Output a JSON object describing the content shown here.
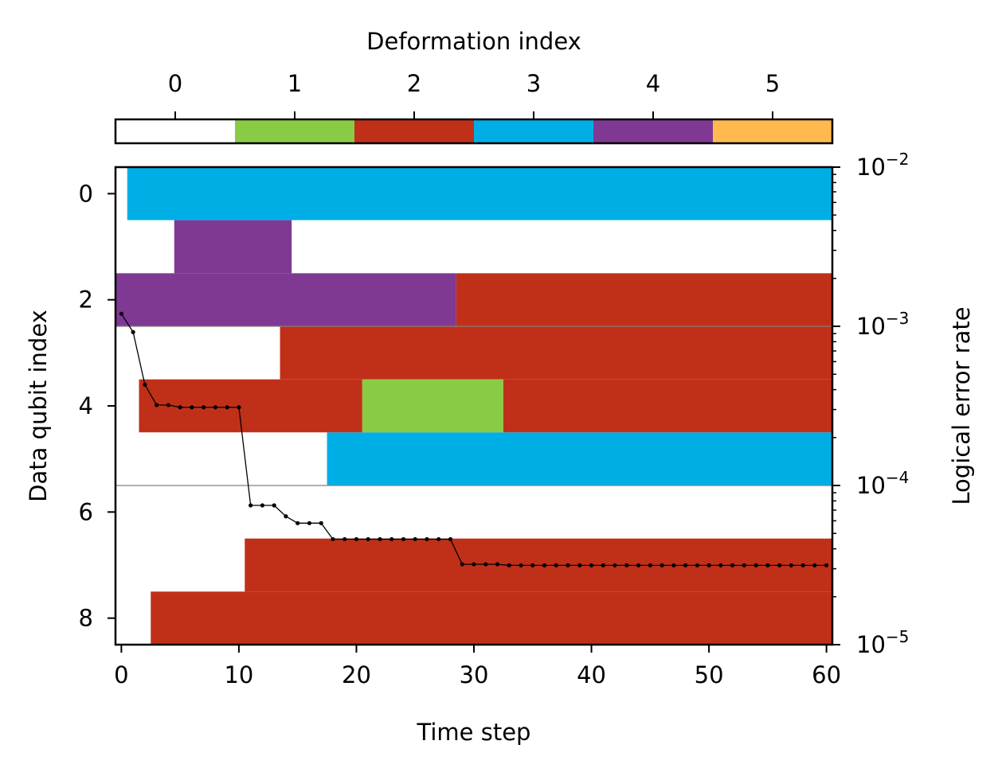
{
  "chart_data": {
    "type": "heatmap",
    "title": "",
    "xlabel": "Time step",
    "ylabel": "Data qubit index",
    "y2label": "Logical error rate",
    "colorbar_label": "Deformation index",
    "colorbar_ticks": [
      "0",
      "1",
      "2",
      "3",
      "4",
      "5"
    ],
    "colorbar_colors": [
      "#ffffff",
      "#8acb46",
      "#c03018",
      "#00aee6",
      "#7f3993",
      "#ffb94f"
    ],
    "x_ticks": [
      "0",
      "10",
      "20",
      "30",
      "40",
      "50",
      "60"
    ],
    "xlim": [
      -0.5,
      60.5
    ],
    "y_ticks": [
      "0",
      "2",
      "4",
      "6",
      "8"
    ],
    "ylim": [
      8.5,
      -0.5
    ],
    "y2_ticks": [
      {
        "base": "10",
        "exp": "−2",
        "value": -2
      },
      {
        "base": "10",
        "exp": "−3",
        "value": -3
      },
      {
        "base": "10",
        "exp": "−4",
        "value": -4
      },
      {
        "base": "10",
        "exp": "−5",
        "value": -5
      }
    ],
    "y2lim": [
      1e-05,
      0.01
    ],
    "y2scale": "log",
    "group_separators": [
      2.5,
      5.5
    ],
    "rows": [
      {
        "qubit": 0,
        "segments": [
          {
            "start": 0,
            "end": 0,
            "deformation": 0
          },
          {
            "start": 1,
            "end": 60,
            "deformation": 3
          }
        ]
      },
      {
        "qubit": 1,
        "segments": [
          {
            "start": 0,
            "end": 4,
            "deformation": 0
          },
          {
            "start": 5,
            "end": 14,
            "deformation": 4
          },
          {
            "start": 15,
            "end": 60,
            "deformation": 0
          }
        ]
      },
      {
        "qubit": 2,
        "segments": [
          {
            "start": 0,
            "end": 28,
            "deformation": 4
          },
          {
            "start": 29,
            "end": 60,
            "deformation": 2
          }
        ]
      },
      {
        "qubit": 3,
        "segments": [
          {
            "start": 0,
            "end": 13,
            "deformation": 0
          },
          {
            "start": 14,
            "end": 60,
            "deformation": 2
          }
        ]
      },
      {
        "qubit": 4,
        "segments": [
          {
            "start": 0,
            "end": 1,
            "deformation": 0
          },
          {
            "start": 2,
            "end": 20,
            "deformation": 2
          },
          {
            "start": 21,
            "end": 32,
            "deformation": 1
          },
          {
            "start": 33,
            "end": 60,
            "deformation": 2
          }
        ]
      },
      {
        "qubit": 5,
        "segments": [
          {
            "start": 0,
            "end": 17,
            "deformation": 0
          },
          {
            "start": 18,
            "end": 60,
            "deformation": 3
          }
        ]
      },
      {
        "qubit": 6,
        "segments": [
          {
            "start": 0,
            "end": 60,
            "deformation": 0
          }
        ]
      },
      {
        "qubit": 7,
        "segments": [
          {
            "start": 0,
            "end": 10,
            "deformation": 0
          },
          {
            "start": 11,
            "end": 60,
            "deformation": 2
          }
        ]
      },
      {
        "qubit": 8,
        "segments": [
          {
            "start": 0,
            "end": 2,
            "deformation": 0
          },
          {
            "start": 3,
            "end": 60,
            "deformation": 2
          }
        ]
      }
    ],
    "series": [
      {
        "x": [
          0,
          1,
          2,
          3,
          4,
          5,
          6,
          7,
          8,
          9,
          10,
          11,
          12,
          13,
          14,
          15,
          16,
          17,
          18,
          19,
          20,
          21,
          22,
          23,
          24,
          25,
          26,
          27,
          28,
          29,
          30,
          31,
          32,
          33,
          34,
          35,
          36,
          37,
          38,
          39,
          40,
          41,
          42,
          43,
          44,
          45,
          46,
          47,
          48,
          49,
          50,
          51,
          52,
          53,
          54,
          55,
          56,
          57,
          58,
          59,
          60
        ],
        "y": [
          0.0012,
          0.00092,
          0.00043,
          0.00032,
          0.00032,
          0.00031,
          0.00031,
          0.00031,
          0.00031,
          0.00031,
          0.00031,
          7.5e-05,
          7.5e-05,
          7.5e-05,
          6.4e-05,
          5.8e-05,
          5.8e-05,
          5.8e-05,
          4.6e-05,
          4.6e-05,
          4.6e-05,
          4.6e-05,
          4.6e-05,
          4.6e-05,
          4.6e-05,
          4.6e-05,
          4.6e-05,
          4.6e-05,
          4.6e-05,
          3.2e-05,
          3.2e-05,
          3.2e-05,
          3.2e-05,
          3.15e-05,
          3.15e-05,
          3.15e-05,
          3.15e-05,
          3.15e-05,
          3.15e-05,
          3.15e-05,
          3.15e-05,
          3.15e-05,
          3.15e-05,
          3.15e-05,
          3.15e-05,
          3.15e-05,
          3.15e-05,
          3.15e-05,
          3.15e-05,
          3.15e-05,
          3.15e-05,
          3.15e-05,
          3.15e-05,
          3.15e-05,
          3.15e-05,
          3.15e-05,
          3.15e-05,
          3.15e-05,
          3.15e-05,
          3.15e-05,
          3.15e-05
        ]
      }
    ]
  }
}
